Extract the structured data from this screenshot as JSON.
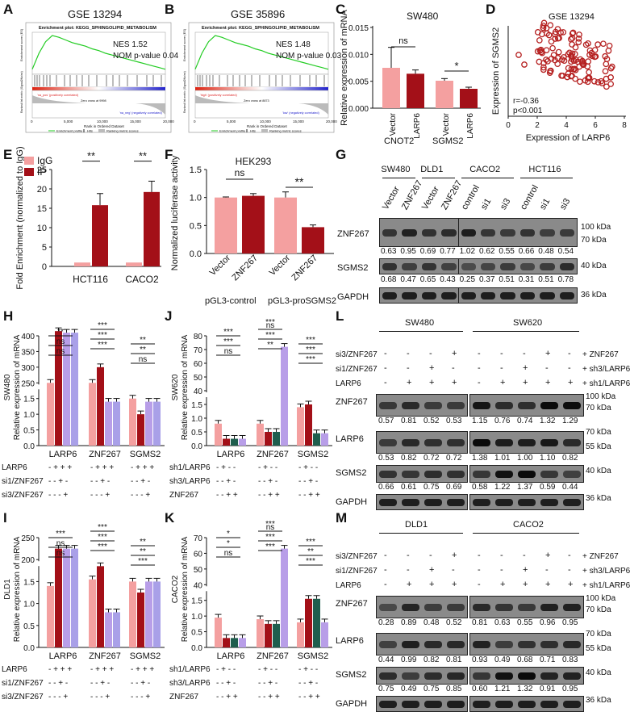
{
  "labels": {
    "A": "A",
    "B": "B",
    "C": "C",
    "D": "D",
    "E": "E",
    "F": "F",
    "G": "G",
    "H": "H",
    "I": "I",
    "J": "J",
    "K": "K",
    "L": "L",
    "M": "M"
  },
  "gsea": [
    {
      "title": "GSE 13294",
      "plot_title": "Enrichment plot: KEGG_SPHINGOLIPID_METABOLISM",
      "nes": "NES 1.52",
      "pval": "NOM p-value 0.04",
      "ylab1": "Enrichment score (ES)",
      "ylab2": "Ranked list metric (Signal2Noise)",
      "xlab": "Rank in Ordered Dataset",
      "pos": "'na_pos' (positively correlated)",
      "neg": "'na_neg' (negatively correlated)",
      "zero": "Zero cross at 9998",
      "legend": [
        "Enrichment profile",
        "Hits",
        "Ranking metric scores"
      ],
      "xticks": [
        "0",
        "5,000",
        "10,000",
        "15,000",
        "20,000"
      ]
    },
    {
      "title": "GSE 35896",
      "plot_title": "Enrichment plot: KEGG_SPHINGOLIPID_METABOLISM",
      "nes": "NES 1.48",
      "pval": "NOM p-value 0.03",
      "ylab1": "Enrichment score (ES)",
      "ylab2": "Ranked list metric (Signal2Noise)",
      "xlab": "Rank in Ordered Dataset",
      "pos": "'high' (positively correlated)",
      "neg": "'low' (negatively correlated)",
      "zero": "Zero cross at 8873",
      "legend": [
        "Enrichment profile",
        "Hits",
        "Ranking metric scores"
      ],
      "xticks": [
        "0",
        "5,000",
        "10,000",
        "15,000",
        "20,000"
      ]
    }
  ],
  "chart_data": [
    {
      "panel": "C",
      "type": "bar",
      "title": "SW480",
      "ylabel": "Relative expression of mRNA",
      "ylim": [
        0,
        0.015
      ],
      "yticks": [
        "0.000",
        "0.005",
        "0.010",
        "0.015"
      ],
      "categories": [
        "Vector",
        "LARP6",
        "Vector",
        "LARP6"
      ],
      "groups": [
        "CNOT2",
        "SGMS2"
      ],
      "values": [
        0.0075,
        0.0064,
        0.0051,
        0.0036
      ],
      "errors": [
        0.0038,
        0.0007,
        0.0004,
        0.0003
      ],
      "sig": [
        "ns",
        "*"
      ]
    },
    {
      "panel": "D",
      "type": "scatter",
      "title": "GSE 13294",
      "xlabel": "Expression of LARP6",
      "ylabel": "Expression of SGMS2",
      "xticks": [
        "0",
        "2",
        "4",
        "6",
        "8"
      ],
      "stat1": "r=-0.36",
      "stat2": "p<0.001"
    },
    {
      "panel": "E",
      "type": "bar",
      "ylabel": "Fold Enrichment (normalized to IgG)",
      "ylim": [
        0,
        25
      ],
      "yticks": [
        "0",
        "5",
        "10",
        "15",
        "20",
        "25"
      ],
      "categories": [
        "HCT116",
        "CACO2"
      ],
      "series": [
        {
          "name": "IgG",
          "values": [
            1,
            1
          ]
        },
        {
          "name": "IP",
          "values": [
            15.8,
            19.2
          ]
        }
      ],
      "errors": [
        3,
        2.8
      ],
      "sig": [
        "**",
        "**"
      ]
    },
    {
      "panel": "F",
      "type": "bar",
      "title": "HEK293",
      "ylabel": "Normalized luciferase activity",
      "ylim": [
        0,
        1.5
      ],
      "yticks": [
        "0.0",
        "0.5",
        "1.0",
        "1.5"
      ],
      "categories": [
        "Vector",
        "ZNF267",
        "Vector",
        "ZNF267"
      ],
      "groups": [
        "pGL3-control",
        "pGL3-proSGMS2"
      ],
      "values": [
        1.0,
        1.03,
        1.0,
        0.47
      ],
      "errors": [
        0.01,
        0.04,
        0.1,
        0.04
      ],
      "sig": [
        "ns",
        "**"
      ]
    },
    {
      "panel": "H",
      "type": "bar",
      "ylabel": "SW480 Relative expression of mRNA",
      "categories": [
        "LARP6",
        "ZNF267",
        "SGMS2"
      ],
      "yticks": [
        "0.0",
        "0.5",
        "1.0",
        "1.5",
        "250",
        "300",
        "350",
        "400"
      ],
      "sig": [
        "**",
        "ns",
        "ns",
        "***",
        "***",
        "***",
        "**",
        "**",
        "ns"
      ],
      "conds": [
        {
          "label": "LARP6",
          "marks": [
            "-+++",
            "-+++",
            "-+++"
          ]
        },
        {
          "label": "si1/ZNF267",
          "marks": [
            "--+-",
            "--+-",
            "--+-"
          ]
        },
        {
          "label": "si3/ZNF267",
          "marks": [
            "---+",
            "---+",
            "---+"
          ]
        }
      ]
    },
    {
      "panel": "I",
      "type": "bar",
      "ylabel": "DLD1 Relative expression of mRNA",
      "categories": [
        "LARP6",
        "ZNF267",
        "SGMS2"
      ],
      "yticks": [
        "0.0",
        "0.5",
        "1.0",
        "1.5",
        "200",
        "250"
      ],
      "sig": [
        "***",
        "ns",
        "ns",
        "***",
        "***",
        "***",
        "**",
        "**",
        "***"
      ],
      "conds": [
        {
          "label": "LARP6",
          "marks": [
            "-+++",
            "-+++",
            "-+++"
          ]
        },
        {
          "label": "si1/ZNF267",
          "marks": [
            "--+-",
            "--+-",
            "--+-"
          ]
        },
        {
          "label": "si3/ZNF267",
          "marks": [
            "---+",
            "---+",
            "---+"
          ]
        }
      ]
    },
    {
      "panel": "J",
      "type": "bar",
      "ylabel": "SW620 Relative expression of mRNA",
      "categories": [
        "LARP6",
        "ZNF267",
        "SGMS2"
      ],
      "yticks": [
        "0.0",
        "0.5",
        "1.0",
        "1.5",
        "40",
        "50",
        "60",
        "70",
        "80"
      ],
      "sig": [
        "***",
        "***",
        "ns",
        "ns",
        "***",
        "**",
        "***",
        "***",
        "***",
        "***"
      ],
      "conds": [
        {
          "label": "sh1/LARP6",
          "marks": [
            "-+--",
            "-+--",
            "-+--"
          ]
        },
        {
          "label": "sh3/LARP6",
          "marks": [
            "--+-",
            "--+-",
            "--+-"
          ]
        },
        {
          "label": "ZNF267",
          "marks": [
            "--++",
            "--++",
            "--++"
          ]
        }
      ]
    },
    {
      "panel": "K",
      "type": "bar",
      "ylabel": "CACO2 Relative expression of mRNA",
      "categories": [
        "LARP6",
        "ZNF267",
        "SGMS2"
      ],
      "yticks": [
        "0.0",
        "0.5",
        "1.0",
        "1.5",
        "40",
        "50",
        "60",
        "70"
      ],
      "sig": [
        "*",
        "*",
        "ns",
        "ns",
        "***",
        "***",
        "***",
        "**",
        "***",
        "***"
      ],
      "conds": [
        {
          "label": "sh1/LARP6",
          "marks": [
            "-+--",
            "-+--",
            "-+--"
          ]
        },
        {
          "label": "sh3/LARP6",
          "marks": [
            "--+-",
            "--+-",
            "--+-"
          ]
        },
        {
          "label": "ZNF267",
          "marks": [
            "--++",
            "--++",
            "--++"
          ]
        }
      ]
    }
  ],
  "blotG": {
    "cells": [
      "SW480",
      "DLD1",
      "CACO2",
      "HCT116"
    ],
    "lanes": [
      "Vector",
      "ZNF267",
      "Vector",
      "ZNF267",
      "control",
      "si1",
      "si3",
      "control",
      "si1",
      "si3"
    ],
    "rows": [
      "ZNF267",
      "SGMS2",
      "GAPDH"
    ],
    "kda": [
      "100 kDa",
      "70 kDa",
      "40 kDa",
      "36 kDa"
    ],
    "q1": [
      "0.63",
      "0.95",
      "0.69",
      "0.77",
      "1.02",
      "0.62",
      "0.55",
      "0.66",
      "0.48",
      "0.54"
    ],
    "q2": [
      "0.68",
      "0.47",
      "0.65",
      "0.43",
      "0.25",
      "0.37",
      "0.51",
      "0.31",
      "0.51",
      "0.78"
    ]
  },
  "blotL": {
    "cells": [
      "SW480",
      "SW620"
    ],
    "conds_left": [
      "si3/ZNF267",
      "si1/ZNF267",
      "LARP6"
    ],
    "conds_right": [
      "ZNF267",
      "sh3/LARP6",
      "sh1/LARP6"
    ],
    "marks_left": [
      "---+",
      "--+-",
      "-+++"
    ],
    "marks_right": [
      "---+",
      "--+-",
      "-+--"
    ],
    "marks_right2": [
      "--++",
      "--+-",
      "-+--"
    ],
    "rows": [
      "ZNF267",
      "LARP6",
      "SGMS2",
      "GAPDH"
    ],
    "kda": [
      "100 kDa",
      "70 kDa",
      "70 kDa",
      "55 kDa",
      "40 kDa",
      "36 kDa"
    ],
    "q1": [
      "0.57",
      "0.81",
      "0.52",
      "0.53",
      "1.15",
      "0.76",
      "0.74",
      "1.32",
      "1.29"
    ],
    "q2": [
      "0.53",
      "0.82",
      "0.72",
      "0.72",
      "1.38",
      "1.01",
      "1.00",
      "1.10",
      "0.82"
    ],
    "q3": [
      "0.66",
      "0.61",
      "0.75",
      "0.69",
      "0.58",
      "1.22",
      "1.37",
      "0.59",
      "0.44"
    ]
  },
  "blotM": {
    "cells": [
      "DLD1",
      "CACO2"
    ],
    "rows": [
      "ZNF267",
      "LARP6",
      "SGMS2",
      "GAPDH"
    ],
    "q1": [
      "0.28",
      "0.89",
      "0.48",
      "0.52",
      "0.81",
      "0.63",
      "0.55",
      "0.96",
      "0.95"
    ],
    "q2": [
      "0.44",
      "0.99",
      "0.82",
      "0.81",
      "0.93",
      "0.49",
      "0.68",
      "0.71",
      "0.83"
    ],
    "q3": [
      "0.75",
      "0.49",
      "0.75",
      "0.85",
      "0.60",
      "1.21",
      "1.32",
      "0.91",
      "0.95"
    ]
  },
  "colors": {
    "pink": "#f4a0a0",
    "red": "#a31018",
    "green": "#1f5e4e",
    "purple": "#b89ee8",
    "lavender": "#a9a0e8"
  }
}
